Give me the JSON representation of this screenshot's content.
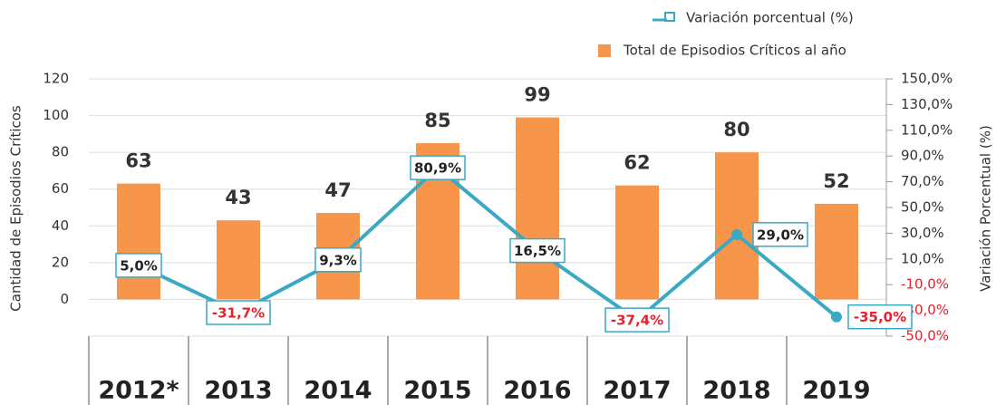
{
  "chart_data": {
    "type": "bar_line",
    "y_label": "Cantidad de Episodios Críticos",
    "y2_label": "Variación Porcentual (%)",
    "categories": [
      "2012*",
      "2013",
      "2014",
      "2015",
      "2016",
      "2017",
      "2018",
      "2019"
    ],
    "series": [
      {
        "name": "Total de Episodios Críticos al año",
        "color": "#f7964a",
        "type": "bar",
        "values": [
          63,
          43,
          47,
          85,
          99,
          62,
          80,
          52
        ]
      },
      {
        "name": "Variación porcentual (%)",
        "color": "#3aa9c4",
        "type": "line",
        "axis": "y2",
        "values": [
          5.0,
          -31.7,
          9.3,
          80.9,
          16.5,
          -37.4,
          29.0,
          -35.0
        ],
        "value_labels": [
          "5,0%",
          "-31,7%",
          "9,3%",
          "80,9%",
          "16,5%",
          "-37,4%",
          "29,0%",
          "-35,0%"
        ]
      }
    ],
    "ylim": [
      -20,
      120
    ],
    "yticks": [
      0,
      20,
      40,
      60,
      80,
      100,
      120
    ],
    "y2lim": [
      -50,
      150
    ],
    "y2ticks": [
      {
        "value": 150,
        "label": "150,0%"
      },
      {
        "value": 130,
        "label": "130,0%"
      },
      {
        "value": 110,
        "label": "110,0%"
      },
      {
        "value": 90,
        "label": "90,0%"
      },
      {
        "value": 70,
        "label": "70,0%"
      },
      {
        "value": 50,
        "label": "50,0%"
      },
      {
        "value": 30,
        "label": "30,0%"
      },
      {
        "value": 10,
        "label": "10,0%"
      },
      {
        "value": -10,
        "label": "-10,0%"
      },
      {
        "value": -30,
        "label": "-30,0%"
      },
      {
        "value": -50,
        "label": "-50,0%"
      }
    ],
    "grid": true,
    "legend": "top-right",
    "negative_color": "#e3232b"
  }
}
